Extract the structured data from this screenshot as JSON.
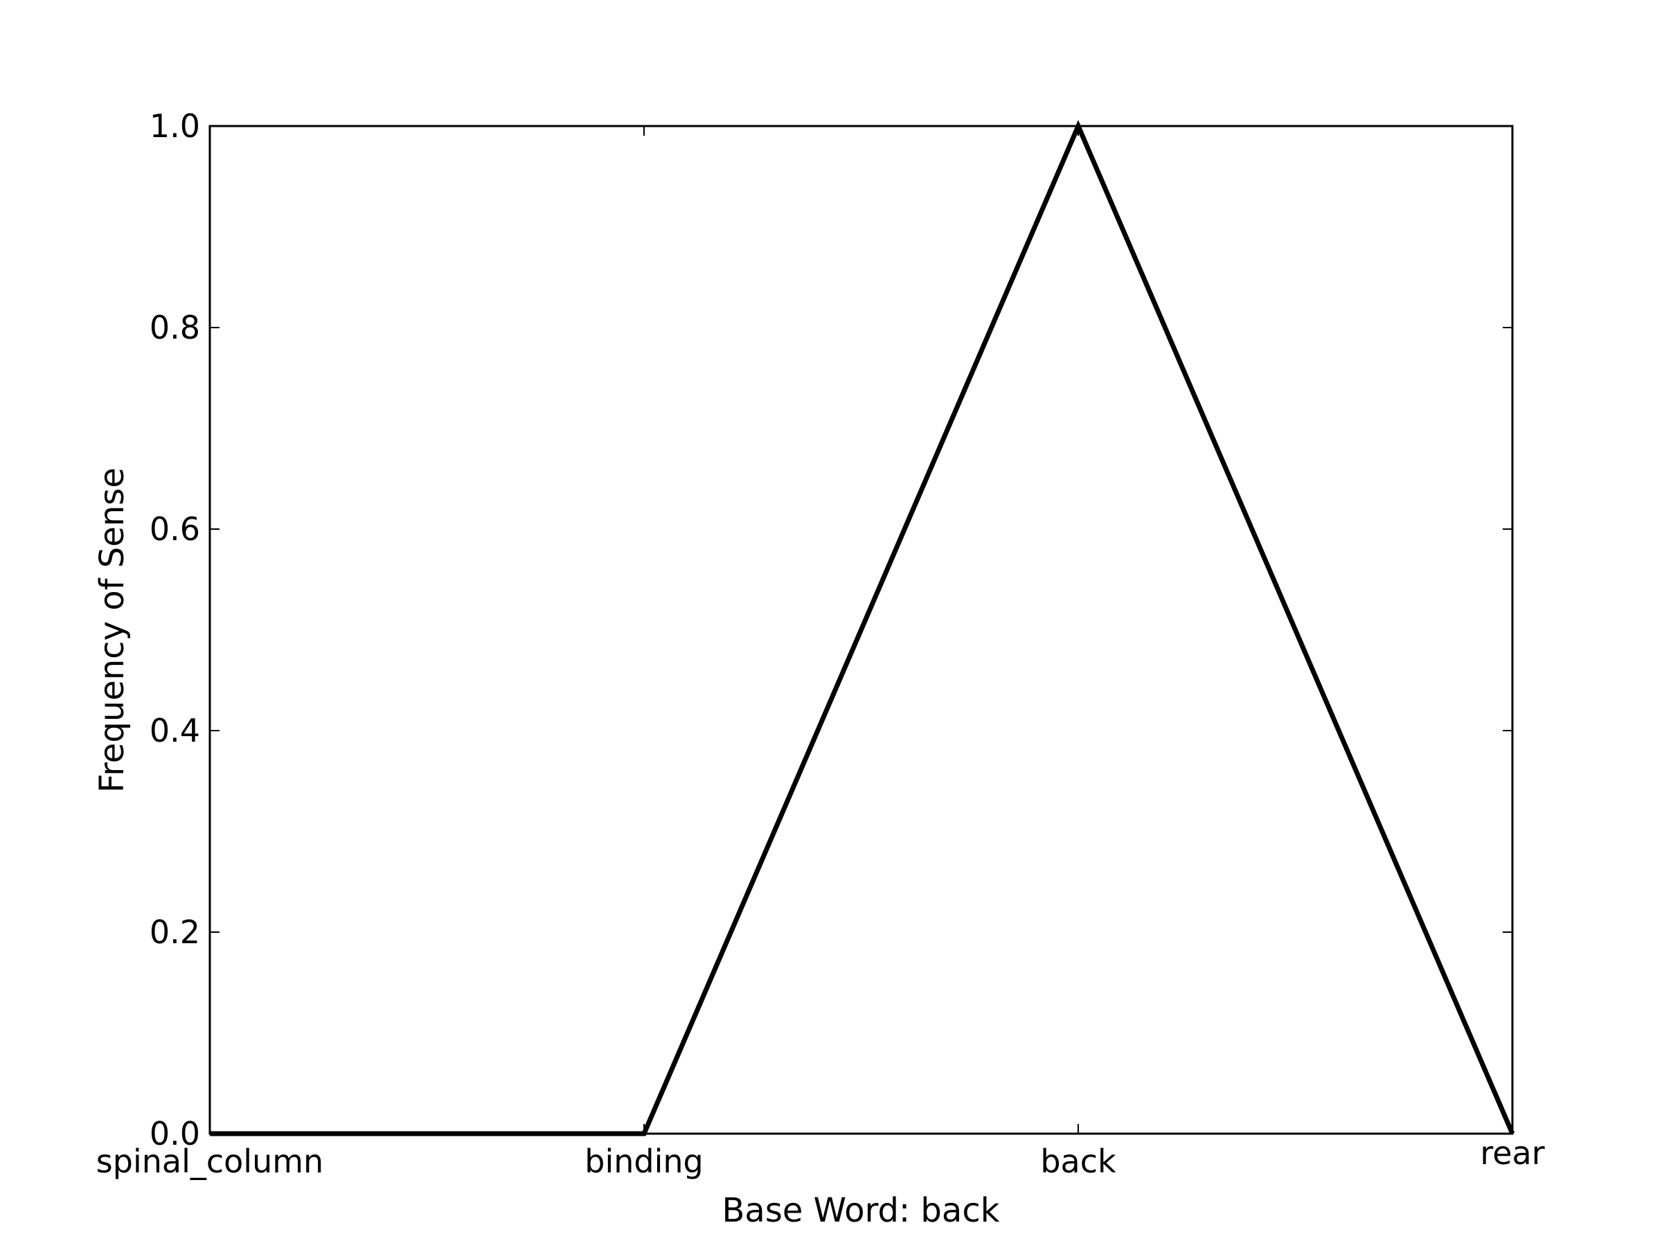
{
  "chart_data": {
    "type": "line",
    "categories": [
      "spinal_column",
      "binding",
      "back",
      "rear"
    ],
    "series": [
      {
        "values": [
          0.0,
          0.0,
          1.0,
          0.0
        ],
        "color": "#000000"
      }
    ],
    "xlabel": "Base Word: back",
    "ylabel": "Frequency of Sense",
    "ylim": [
      0.0,
      1.0
    ],
    "yticks": [
      "0.0",
      "0.2",
      "0.4",
      "0.6",
      "0.8",
      "1.0"
    ],
    "grid": false,
    "legend": "none"
  }
}
